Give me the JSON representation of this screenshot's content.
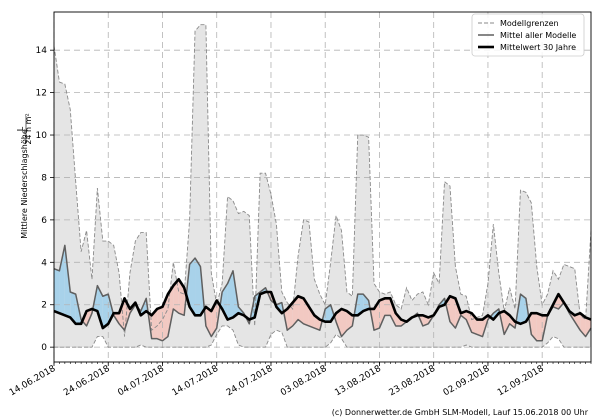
{
  "chart_data": {
    "type": "line",
    "ylabel_main": "Mittlere Niederschlagshöhe",
    "ylabel_unit_num": "L",
    "ylabel_unit_den": "24 h m²",
    "xlabel": "",
    "ylim": [
      -0.7,
      15.8
    ],
    "yticks": [
      0,
      2,
      4,
      6,
      8,
      10,
      12,
      14
    ],
    "x_start": "2018-06-14",
    "x_end": "2018-09-21",
    "xticks": [
      "14.06.2018",
      "24.06.2018",
      "04.07.2018",
      "14.07.2018",
      "24.07.2018",
      "03.08.2018",
      "13.08.2018",
      "23.08.2018",
      "02.09.2018",
      "12.09.2018"
    ],
    "grid": true,
    "legend_position": "top-right",
    "colors": {
      "envelope_fill": "#e5e5e5",
      "envelope_line": "#8a8a8a",
      "model_mean": "#5f5f5f",
      "climatology": "#000000",
      "wetter_fill": "#a8d2ea",
      "trockener_fill": "#f2c9c2",
      "grid": "#b3b3b3"
    },
    "series": [
      {
        "name": "Modellgrenzen",
        "key": "upper",
        "values": [
          14.2,
          12.5,
          12.4,
          11.2,
          7.8,
          4.5,
          5.5,
          3.2,
          7.5,
          5.0,
          5.0,
          4.8,
          3.5,
          0.5,
          3.5,
          5.0,
          5.4,
          5.4,
          0.8,
          1.0,
          1.3,
          1.8,
          4.0,
          2.6,
          2.5,
          6.0,
          14.9,
          15.2,
          15.2,
          3.5,
          2.0,
          3.0,
          7.1,
          6.9,
          6.3,
          6.4,
          6.2,
          1.0,
          8.2,
          8.2,
          7.2,
          5.8,
          2.6,
          2.1,
          1.8,
          4.3,
          6.0,
          5.9,
          3.2,
          2.5,
          2.0,
          4.0,
          6.2,
          5.5,
          2.6,
          2.4,
          10.0,
          10.0,
          9.9,
          3.0,
          2.6,
          2.5,
          2.6,
          2.0,
          1.8,
          2.8,
          2.2,
          2.5,
          2.6,
          2.0,
          3.5,
          3.0,
          7.8,
          7.6,
          3.8,
          2.5,
          2.4,
          1.3,
          1.4,
          1.5,
          3.0,
          5.8,
          3.5,
          1.7,
          2.8,
          1.8,
          7.4,
          7.3,
          6.8,
          3.8,
          2.0,
          2.5,
          3.6,
          3.2,
          3.9,
          3.8,
          3.7,
          1.5,
          1.3,
          5.5
        ]
      },
      {
        "name": "Modellgrenzen",
        "key": "lower",
        "values": [
          0,
          0,
          0,
          0,
          0,
          0,
          0,
          0,
          0.5,
          0.5,
          0,
          0,
          0,
          0,
          0,
          0,
          0.1,
          0,
          0,
          0,
          0,
          0,
          0,
          0,
          0,
          0,
          0,
          0,
          0,
          0.1,
          0.6,
          1.0,
          1.0,
          0.8,
          0.1,
          0,
          0,
          0,
          0,
          0,
          0.6,
          0.8,
          0.7,
          0,
          0,
          0,
          0,
          0,
          0,
          0,
          0,
          0.2,
          0.6,
          0.4,
          0,
          0,
          0,
          0,
          0,
          0,
          0,
          0,
          0,
          0,
          0,
          0,
          0,
          0,
          0,
          0,
          0,
          0,
          0,
          0,
          0,
          0,
          0.1,
          0,
          0,
          0,
          0,
          0,
          0,
          0,
          0,
          0,
          0,
          0,
          0,
          0,
          0,
          0.2,
          0.5,
          0.4,
          0,
          0,
          0,
          0,
          0,
          0
        ]
      },
      {
        "name": "Mittel aller Modelle",
        "key": "mean",
        "values": [
          3.7,
          3.6,
          4.8,
          2.6,
          2.5,
          1.3,
          1.0,
          1.6,
          2.9,
          2.4,
          2.5,
          1.5,
          1.1,
          0.8,
          1.6,
          2.0,
          1.7,
          2.3,
          0.4,
          0.4,
          0.3,
          0.5,
          1.8,
          1.6,
          1.5,
          3.9,
          4.2,
          3.8,
          1.0,
          0.5,
          0.9,
          2.6,
          3.0,
          3.6,
          1.9,
          1.6,
          1.1,
          2.4,
          2.6,
          2.8,
          2.2,
          2.0,
          2.1,
          0.8,
          1.0,
          1.3,
          1.1,
          1.0,
          0.9,
          0.8,
          1.8,
          2.0,
          1.2,
          0.5,
          0.8,
          1.0,
          2.5,
          2.5,
          2.2,
          0.8,
          0.9,
          1.5,
          1.5,
          1.0,
          1.0,
          1.2,
          1.4,
          1.6,
          1.0,
          1.1,
          1.5,
          2.0,
          2.3,
          1.2,
          0.9,
          1.5,
          1.3,
          0.7,
          0.6,
          0.5,
          1.3,
          1.6,
          1.8,
          0.6,
          1.1,
          0.9,
          2.5,
          2.3,
          0.6,
          0.3,
          0.3,
          1.5,
          1.9,
          1.8,
          2.1,
          1.6,
          1.2,
          0.8,
          0.5,
          0.9
        ]
      },
      {
        "name": "Mittelwert 30 Jahre",
        "key": "clim",
        "values": [
          1.7,
          1.6,
          1.5,
          1.4,
          1.1,
          1.1,
          1.7,
          1.8,
          1.7,
          0.9,
          1.1,
          1.6,
          1.6,
          2.3,
          1.8,
          2.1,
          1.5,
          1.7,
          1.5,
          1.8,
          1.9,
          2.5,
          2.9,
          3.2,
          2.8,
          1.9,
          1.5,
          1.5,
          1.9,
          1.7,
          2.2,
          1.8,
          1.3,
          1.4,
          1.6,
          1.5,
          1.3,
          1.4,
          2.5,
          2.6,
          2.6,
          1.9,
          1.6,
          1.8,
          2.1,
          2.4,
          2.3,
          1.9,
          1.5,
          1.3,
          1.2,
          1.2,
          1.6,
          1.8,
          1.7,
          1.5,
          1.5,
          1.7,
          1.8,
          1.8,
          2.2,
          2.3,
          2.3,
          1.6,
          1.3,
          1.2,
          1.4,
          1.5,
          1.5,
          1.4,
          1.5,
          1.9,
          2.0,
          2.4,
          2.3,
          1.6,
          1.7,
          1.6,
          1.3,
          1.3,
          1.5,
          1.3,
          1.6,
          1.7,
          1.5,
          1.2,
          1.1,
          1.2,
          1.6,
          1.6,
          1.5,
          1.5,
          2.0,
          2.5,
          2.1,
          1.7,
          1.5,
          1.6,
          1.4,
          1.3
        ]
      }
    ]
  },
  "legend": {
    "items": [
      {
        "label": "Modellgrenzen",
        "style": "dashed"
      },
      {
        "label": "Mittel aller Modelle",
        "style": "solid"
      },
      {
        "label": "Mittelwert 30 Jahre",
        "style": "bold"
      }
    ]
  },
  "footer": {
    "credit": "(c) Donnerwetter.de GmbH SLM-Modell, Lauf 15.06.2018 00 Uhr"
  }
}
